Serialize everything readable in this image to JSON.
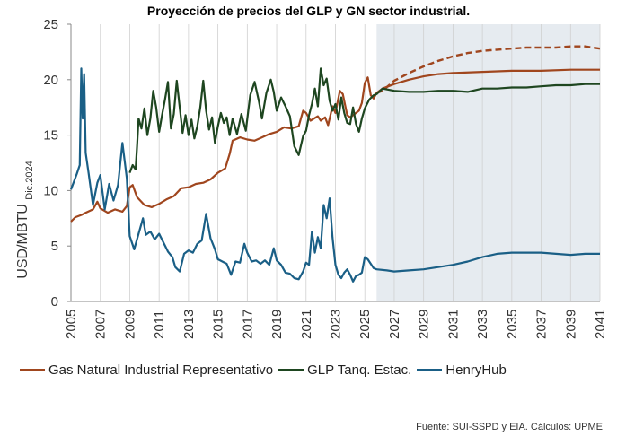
{
  "chart_data": {
    "type": "line",
    "title": "Proyección de precios del GLP y GN sector industrial.",
    "ylabel": "USD/MBTU",
    "ylabel_sub": "Dic.2024",
    "ylim": [
      0,
      25
    ],
    "yticks": [
      0,
      5,
      10,
      15,
      20,
      25
    ],
    "xlim": [
      2005,
      2041
    ],
    "xticks": [
      2005,
      2007,
      2009,
      2011,
      2013,
      2015,
      2017,
      2019,
      2021,
      2023,
      2025,
      2027,
      2029,
      2031,
      2033,
      2035,
      2037,
      2039,
      2041
    ],
    "projection_start": 2025.8,
    "projection_color": "#e6ebf0",
    "series": [
      {
        "name": "Gas Natural Industrial Representativo",
        "color": "#a0461e",
        "values": [
          [
            2005.0,
            7.2
          ],
          [
            2005.3,
            7.6
          ],
          [
            2005.7,
            7.8
          ],
          [
            2006.0,
            8.0
          ],
          [
            2006.5,
            8.3
          ],
          [
            2006.8,
            9.0
          ],
          [
            2007.0,
            8.4
          ],
          [
            2007.5,
            8.0
          ],
          [
            2008.0,
            8.3
          ],
          [
            2008.5,
            8.1
          ],
          [
            2008.8,
            8.6
          ],
          [
            2009.0,
            10.3
          ],
          [
            2009.2,
            10.5
          ],
          [
            2009.5,
            9.4
          ],
          [
            2010.0,
            8.7
          ],
          [
            2010.5,
            8.5
          ],
          [
            2011.0,
            8.8
          ],
          [
            2011.5,
            9.2
          ],
          [
            2012.0,
            9.5
          ],
          [
            2012.5,
            10.2
          ],
          [
            2013.0,
            10.3
          ],
          [
            2013.5,
            10.6
          ],
          [
            2014.0,
            10.7
          ],
          [
            2014.5,
            11.0
          ],
          [
            2015.0,
            11.6
          ],
          [
            2015.5,
            12.0
          ],
          [
            2015.8,
            13.3
          ],
          [
            2016.0,
            14.5
          ],
          [
            2016.5,
            14.8
          ],
          [
            2017.0,
            14.6
          ],
          [
            2017.5,
            14.5
          ],
          [
            2018.0,
            14.8
          ],
          [
            2018.5,
            15.1
          ],
          [
            2019.0,
            15.3
          ],
          [
            2019.5,
            15.7
          ],
          [
            2020.0,
            15.6
          ],
          [
            2020.5,
            15.8
          ],
          [
            2020.8,
            17.2
          ],
          [
            2021.0,
            17.0
          ],
          [
            2021.3,
            16.3
          ],
          [
            2021.8,
            16.7
          ],
          [
            2022.0,
            16.3
          ],
          [
            2022.3,
            16.6
          ],
          [
            2022.5,
            15.9
          ],
          [
            2022.8,
            17.6
          ],
          [
            2023.0,
            17.0
          ],
          [
            2023.3,
            19.0
          ],
          [
            2023.5,
            18.7
          ],
          [
            2023.8,
            16.8
          ],
          [
            2024.0,
            16.6
          ],
          [
            2024.3,
            16.9
          ],
          [
            2024.6,
            17.2
          ],
          [
            2024.8,
            17.9
          ],
          [
            2025.0,
            19.7
          ],
          [
            2025.2,
            20.2
          ],
          [
            2025.4,
            18.6
          ],
          [
            2025.6,
            18.3
          ],
          [
            2025.8,
            18.8
          ],
          [
            2026.2,
            19.2
          ],
          [
            2027.0,
            19.6
          ],
          [
            2028.0,
            20.0
          ],
          [
            2029.0,
            20.3
          ],
          [
            2030.0,
            20.5
          ],
          [
            2031.0,
            20.6
          ],
          [
            2033.0,
            20.7
          ],
          [
            2035.0,
            20.8
          ],
          [
            2037.0,
            20.8
          ],
          [
            2039.0,
            20.9
          ],
          [
            2041.0,
            20.9
          ]
        ]
      },
      {
        "name": "",
        "color": "#a0461e",
        "dashed": true,
        "values": [
          [
            2025.8,
            18.8
          ],
          [
            2026.2,
            19.0
          ],
          [
            2027.0,
            19.9
          ],
          [
            2028.0,
            20.6
          ],
          [
            2029.0,
            21.2
          ],
          [
            2030.0,
            21.7
          ],
          [
            2031.0,
            22.1
          ],
          [
            2032.0,
            22.4
          ],
          [
            2033.0,
            22.6
          ],
          [
            2034.0,
            22.7
          ],
          [
            2035.0,
            22.8
          ],
          [
            2036.0,
            22.9
          ],
          [
            2037.0,
            22.9
          ],
          [
            2038.0,
            22.9
          ],
          [
            2039.0,
            23.0
          ],
          [
            2040.0,
            23.0
          ],
          [
            2041.0,
            22.8
          ]
        ]
      },
      {
        "name": "GLP Tanq. Estac.",
        "color": "#1e4620",
        "values": [
          [
            2009.0,
            11.6
          ],
          [
            2009.2,
            12.3
          ],
          [
            2009.4,
            11.9
          ],
          [
            2009.5,
            14.0
          ],
          [
            2009.6,
            16.5
          ],
          [
            2009.8,
            15.6
          ],
          [
            2010.0,
            17.4
          ],
          [
            2010.2,
            15.0
          ],
          [
            2010.4,
            16.5
          ],
          [
            2010.6,
            19.0
          ],
          [
            2010.8,
            17.5
          ],
          [
            2011.0,
            15.3
          ],
          [
            2011.2,
            16.8
          ],
          [
            2011.4,
            18.2
          ],
          [
            2011.6,
            19.8
          ],
          [
            2011.8,
            15.6
          ],
          [
            2012.0,
            16.9
          ],
          [
            2012.2,
            19.9
          ],
          [
            2012.4,
            17.5
          ],
          [
            2012.6,
            15.2
          ],
          [
            2012.8,
            16.8
          ],
          [
            2013.0,
            15.0
          ],
          [
            2013.2,
            16.4
          ],
          [
            2013.4,
            14.7
          ],
          [
            2013.6,
            15.8
          ],
          [
            2013.8,
            17.5
          ],
          [
            2014.0,
            19.9
          ],
          [
            2014.2,
            17.2
          ],
          [
            2014.4,
            15.5
          ],
          [
            2014.6,
            16.6
          ],
          [
            2014.8,
            14.3
          ],
          [
            2015.0,
            15.8
          ],
          [
            2015.2,
            17.0
          ],
          [
            2015.4,
            16.1
          ],
          [
            2015.6,
            16.6
          ],
          [
            2015.8,
            15.0
          ],
          [
            2016.0,
            16.5
          ],
          [
            2016.3,
            15.1
          ],
          [
            2016.6,
            16.9
          ],
          [
            2016.9,
            15.4
          ],
          [
            2017.2,
            18.6
          ],
          [
            2017.5,
            19.8
          ],
          [
            2017.8,
            18.0
          ],
          [
            2018.0,
            16.5
          ],
          [
            2018.3,
            18.8
          ],
          [
            2018.6,
            20.0
          ],
          [
            2018.8,
            18.9
          ],
          [
            2019.0,
            17.2
          ],
          [
            2019.3,
            18.4
          ],
          [
            2019.6,
            17.6
          ],
          [
            2019.9,
            16.7
          ],
          [
            2020.2,
            14.0
          ],
          [
            2020.5,
            13.2
          ],
          [
            2020.8,
            14.9
          ],
          [
            2021.0,
            15.4
          ],
          [
            2021.2,
            16.8
          ],
          [
            2021.4,
            17.8
          ],
          [
            2021.6,
            19.2
          ],
          [
            2021.8,
            17.6
          ],
          [
            2022.0,
            21.0
          ],
          [
            2022.2,
            19.5
          ],
          [
            2022.4,
            20.1
          ],
          [
            2022.6,
            18.1
          ],
          [
            2022.8,
            17.2
          ],
          [
            2023.0,
            17.8
          ],
          [
            2023.2,
            16.4
          ],
          [
            2023.4,
            18.4
          ],
          [
            2023.6,
            17.0
          ],
          [
            2023.8,
            16.1
          ],
          [
            2024.0,
            16.0
          ],
          [
            2024.2,
            17.5
          ],
          [
            2024.4,
            16.0
          ],
          [
            2024.6,
            15.3
          ],
          [
            2024.8,
            16.5
          ],
          [
            2025.0,
            17.4
          ],
          [
            2025.3,
            18.2
          ],
          [
            2025.6,
            18.6
          ],
          [
            2025.8,
            18.7
          ],
          [
            2026.2,
            19.2
          ],
          [
            2027.0,
            19.0
          ],
          [
            2028.0,
            18.9
          ],
          [
            2029.0,
            18.9
          ],
          [
            2030.0,
            19.0
          ],
          [
            2031.0,
            19.0
          ],
          [
            2032.0,
            18.9
          ],
          [
            2033.0,
            19.2
          ],
          [
            2034.0,
            19.2
          ],
          [
            2035.0,
            19.3
          ],
          [
            2036.0,
            19.3
          ],
          [
            2037.0,
            19.4
          ],
          [
            2038.0,
            19.5
          ],
          [
            2039.0,
            19.5
          ],
          [
            2040.0,
            19.6
          ],
          [
            2041.0,
            19.6
          ]
        ]
      },
      {
        "name": "HenryHub",
        "color": "#1a5f86",
        "values": [
          [
            2005.0,
            10.1
          ],
          [
            2005.2,
            10.8
          ],
          [
            2005.4,
            11.5
          ],
          [
            2005.6,
            12.3
          ],
          [
            2005.7,
            21.0
          ],
          [
            2005.8,
            16.5
          ],
          [
            2005.9,
            20.5
          ],
          [
            2006.0,
            13.4
          ],
          [
            2006.2,
            11.6
          ],
          [
            2006.5,
            8.7
          ],
          [
            2006.8,
            10.7
          ],
          [
            2007.0,
            11.4
          ],
          [
            2007.3,
            8.3
          ],
          [
            2007.6,
            10.6
          ],
          [
            2007.9,
            9.1
          ],
          [
            2008.2,
            10.5
          ],
          [
            2008.5,
            14.3
          ],
          [
            2008.8,
            11.1
          ],
          [
            2009.0,
            5.9
          ],
          [
            2009.3,
            4.7
          ],
          [
            2009.6,
            6.1
          ],
          [
            2009.9,
            7.5
          ],
          [
            2010.1,
            6.0
          ],
          [
            2010.4,
            6.3
          ],
          [
            2010.7,
            5.6
          ],
          [
            2011.0,
            6.1
          ],
          [
            2011.3,
            5.3
          ],
          [
            2011.6,
            4.5
          ],
          [
            2011.9,
            4.0
          ],
          [
            2012.1,
            3.1
          ],
          [
            2012.4,
            2.7
          ],
          [
            2012.7,
            4.3
          ],
          [
            2013.0,
            4.6
          ],
          [
            2013.3,
            4.4
          ],
          [
            2013.6,
            5.2
          ],
          [
            2013.9,
            5.5
          ],
          [
            2014.2,
            7.9
          ],
          [
            2014.5,
            5.7
          ],
          [
            2014.8,
            4.7
          ],
          [
            2015.0,
            3.8
          ],
          [
            2015.3,
            3.6
          ],
          [
            2015.6,
            3.4
          ],
          [
            2015.9,
            2.4
          ],
          [
            2016.2,
            3.6
          ],
          [
            2016.5,
            3.5
          ],
          [
            2016.8,
            5.2
          ],
          [
            2017.0,
            4.4
          ],
          [
            2017.3,
            3.6
          ],
          [
            2017.6,
            3.7
          ],
          [
            2017.9,
            3.4
          ],
          [
            2018.2,
            3.7
          ],
          [
            2018.5,
            3.3
          ],
          [
            2018.8,
            4.8
          ],
          [
            2019.0,
            3.7
          ],
          [
            2019.3,
            3.3
          ],
          [
            2019.6,
            2.6
          ],
          [
            2019.9,
            2.5
          ],
          [
            2020.2,
            2.1
          ],
          [
            2020.5,
            2.0
          ],
          [
            2020.8,
            2.7
          ],
          [
            2021.0,
            3.5
          ],
          [
            2021.2,
            3.3
          ],
          [
            2021.4,
            6.3
          ],
          [
            2021.6,
            4.4
          ],
          [
            2021.8,
            5.8
          ],
          [
            2022.0,
            4.8
          ],
          [
            2022.2,
            8.7
          ],
          [
            2022.4,
            7.5
          ],
          [
            2022.6,
            9.3
          ],
          [
            2022.8,
            5.8
          ],
          [
            2023.0,
            3.3
          ],
          [
            2023.2,
            2.4
          ],
          [
            2023.4,
            2.1
          ],
          [
            2023.6,
            2.6
          ],
          [
            2023.8,
            2.9
          ],
          [
            2024.0,
            2.4
          ],
          [
            2024.2,
            1.8
          ],
          [
            2024.4,
            2.3
          ],
          [
            2024.6,
            2.4
          ],
          [
            2024.8,
            2.6
          ],
          [
            2025.0,
            4.0
          ],
          [
            2025.2,
            3.8
          ],
          [
            2025.4,
            3.4
          ],
          [
            2025.6,
            3.0
          ],
          [
            2025.8,
            2.9
          ],
          [
            2026.5,
            2.8
          ],
          [
            2027.0,
            2.7
          ],
          [
            2028.0,
            2.8
          ],
          [
            2029.0,
            2.9
          ],
          [
            2030.0,
            3.1
          ],
          [
            2031.0,
            3.3
          ],
          [
            2032.0,
            3.6
          ],
          [
            2033.0,
            4.0
          ],
          [
            2034.0,
            4.3
          ],
          [
            2035.0,
            4.4
          ],
          [
            2036.0,
            4.4
          ],
          [
            2037.0,
            4.4
          ],
          [
            2038.0,
            4.3
          ],
          [
            2039.0,
            4.2
          ],
          [
            2040.0,
            4.3
          ],
          [
            2041.0,
            4.3
          ]
        ]
      }
    ],
    "legend": [
      {
        "label": "Gas Natural Industrial Representativo",
        "color": "#a0461e"
      },
      {
        "label": "GLP Tanq. Estac.",
        "color": "#1e4620"
      },
      {
        "label": "HenryHub",
        "color": "#1a5f86"
      }
    ],
    "source": "Fuente: SUI-SSPD y EIA.  Cálculos: UPME"
  }
}
